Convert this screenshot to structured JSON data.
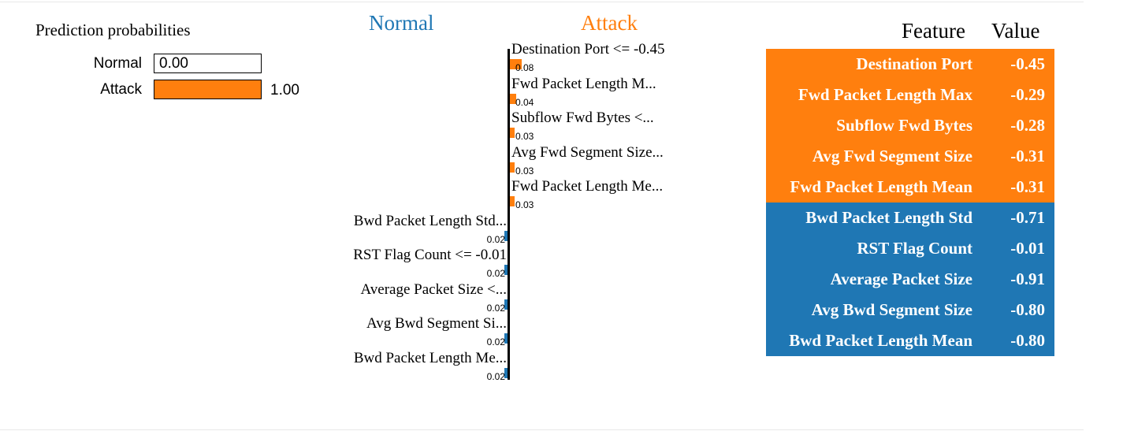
{
  "colors": {
    "normal": "#1f77b4",
    "attack": "#ff7f0e"
  },
  "proba": {
    "title": "Prediction probabilities",
    "items": [
      {
        "label": "Normal",
        "value_text": "0.00",
        "value": 0.0,
        "color": "#1f77b4"
      },
      {
        "label": "Attack",
        "value_text": "1.00",
        "value": 1.0,
        "color": "#ff7f0e"
      }
    ]
  },
  "explanation": {
    "left_class": "Normal",
    "right_class": "Attack"
  },
  "chart_data": {
    "type": "bar",
    "orientation": "horizontal",
    "categories": [
      "Destination Port <= -0.45",
      "Fwd Packet Length M...",
      "Subflow Fwd Bytes <...",
      "Avg Fwd Segment Size...",
      "Fwd Packet Length Me...",
      "Bwd Packet Length Std...",
      "RST Flag Count <= -0.01",
      "Average Packet Size <...",
      "Avg Bwd Segment Si...",
      "Bwd Packet Length Me..."
    ],
    "values": [
      0.08,
      0.04,
      0.03,
      0.03,
      0.03,
      -0.02,
      -0.02,
      -0.02,
      -0.02,
      -0.02
    ],
    "value_labels": [
      "0.08",
      "0.04",
      "0.03",
      "0.03",
      "0.03",
      "0.02",
      "0.02",
      "0.02",
      "0.02",
      "0.02"
    ],
    "series_classes": [
      "Attack",
      "Attack",
      "Attack",
      "Attack",
      "Attack",
      "Normal",
      "Normal",
      "Normal",
      "Normal",
      "Normal"
    ]
  },
  "table": {
    "header_feature": "Feature",
    "header_value": "Value",
    "rows": [
      {
        "feature": "Destination Port",
        "value": "-0.45",
        "class": "attack"
      },
      {
        "feature": "Fwd Packet Length Max",
        "value": "-0.29",
        "class": "attack"
      },
      {
        "feature": "Subflow Fwd Bytes",
        "value": "-0.28",
        "class": "attack"
      },
      {
        "feature": "Avg Fwd Segment Size",
        "value": "-0.31",
        "class": "attack"
      },
      {
        "feature": "Fwd Packet Length Mean",
        "value": "-0.31",
        "class": "attack"
      },
      {
        "feature": "Bwd Packet Length Std",
        "value": "-0.71",
        "class": "normal"
      },
      {
        "feature": "RST Flag Count",
        "value": "-0.01",
        "class": "normal"
      },
      {
        "feature": "Average Packet Size",
        "value": "-0.91",
        "class": "normal"
      },
      {
        "feature": "Avg Bwd Segment Size",
        "value": "-0.80",
        "class": "normal"
      },
      {
        "feature": "Bwd Packet Length Mean",
        "value": "-0.80",
        "class": "normal"
      }
    ]
  }
}
